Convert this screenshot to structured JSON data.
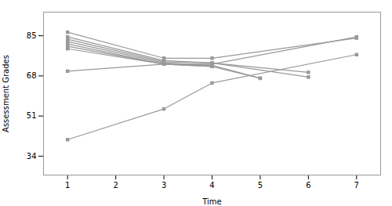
{
  "chart_data": {
    "type": "line",
    "xlabel": "Time",
    "ylabel": "Assessment Grades",
    "color": "#999999",
    "marker": "square",
    "grid": false,
    "xlim": [
      0.5,
      7.5
    ],
    "ylim": [
      26,
      95
    ],
    "xticks": [
      1,
      2,
      3,
      4,
      5,
      6,
      7
    ],
    "yticks": [
      34,
      51,
      68,
      85
    ],
    "series": [
      {
        "x": [
          1,
          3,
          4,
          7
        ],
        "values": [
          86.5,
          75.5,
          75.5,
          84.0
        ]
      },
      {
        "x": [
          1,
          3,
          4,
          6
        ],
        "values": [
          84.5,
          74.5,
          73.5,
          67.5
        ]
      },
      {
        "x": [
          1,
          3,
          4,
          6
        ],
        "values": [
          83.5,
          74.0,
          73.5,
          69.5
        ]
      },
      {
        "x": [
          1,
          3,
          4
        ],
        "values": [
          82.5,
          73.5,
          72.5
        ]
      },
      {
        "x": [
          1,
          3,
          4,
          5
        ],
        "values": [
          81.5,
          73.0,
          72.0,
          67.0
        ]
      },
      {
        "x": [
          1,
          3,
          4,
          5
        ],
        "values": [
          80.5,
          73.0,
          72.5,
          67.0
        ]
      },
      {
        "x": [
          1,
          3,
          4
        ],
        "values": [
          79.5,
          73.0,
          72.0
        ]
      },
      {
        "x": [
          1,
          3,
          4,
          7
        ],
        "values": [
          70.0,
          73.0,
          73.0,
          84.5
        ]
      },
      {
        "x": [
          1,
          3,
          4,
          7
        ],
        "values": [
          41.0,
          54.0,
          65.0,
          77.0
        ]
      }
    ]
  }
}
